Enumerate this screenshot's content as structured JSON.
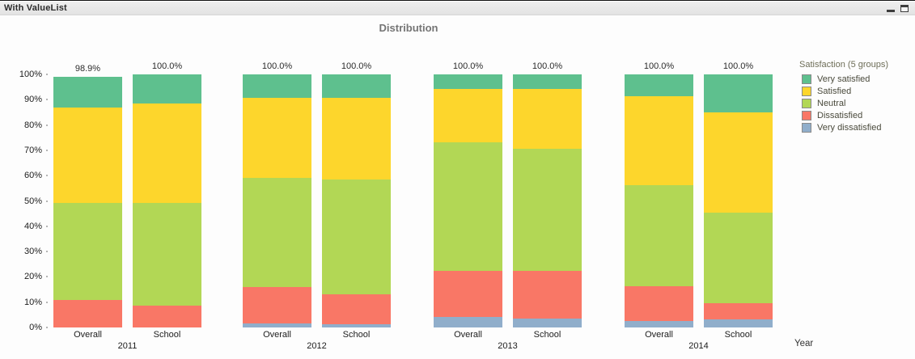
{
  "window": {
    "title": "With ValueList"
  },
  "chart_data": {
    "type": "bar",
    "stacked": true,
    "percent_axis": true,
    "title": "Distribution",
    "xlabel": "Year",
    "ylim": [
      0,
      100
    ],
    "y_ticks": [
      "0%",
      "10%",
      "20%",
      "30%",
      "40%",
      "50%",
      "60%",
      "70%",
      "80%",
      "90%",
      "100%"
    ],
    "legend": {
      "title": "Satisfaction (5 groups)",
      "position": "right",
      "items": [
        {
          "key": "very_satisfied",
          "label": "Very satisfied",
          "color": "#5ec08e"
        },
        {
          "key": "satisfied",
          "label": "Satisfied",
          "color": "#fdd62c"
        },
        {
          "key": "neutral",
          "label": "Neutral",
          "color": "#b2d755"
        },
        {
          "key": "dissatisfied",
          "label": "Dissatisfied",
          "color": "#f97766"
        },
        {
          "key": "very_dissatisfied",
          "label": "Very dissatisfied",
          "color": "#90aecb"
        }
      ]
    },
    "stack_order_bottom_to_top": [
      "very_dissatisfied",
      "dissatisfied",
      "neutral",
      "satisfied",
      "very_satisfied"
    ],
    "groups": [
      {
        "year": "2011",
        "bars": [
          {
            "label": "Overall",
            "total_label": "98.9%",
            "values": {
              "very_dissatisfied": 0.0,
              "dissatisfied": 10.8,
              "neutral": 38.3,
              "satisfied": 37.9,
              "very_satisfied": 11.9
            }
          },
          {
            "label": "School",
            "total_label": "100.0%",
            "values": {
              "very_dissatisfied": 0.0,
              "dissatisfied": 8.6,
              "neutral": 40.5,
              "satisfied": 39.4,
              "very_satisfied": 11.5
            }
          }
        ]
      },
      {
        "year": "2012",
        "bars": [
          {
            "label": "Overall",
            "total_label": "100.0%",
            "values": {
              "very_dissatisfied": 1.5,
              "dissatisfied": 14.6,
              "neutral": 43.0,
              "satisfied": 31.6,
              "very_satisfied": 9.3
            }
          },
          {
            "label": "School",
            "total_label": "100.0%",
            "values": {
              "very_dissatisfied": 1.2,
              "dissatisfied": 11.9,
              "neutral": 45.3,
              "satisfied": 32.3,
              "very_satisfied": 9.3
            }
          }
        ]
      },
      {
        "year": "2013",
        "bars": [
          {
            "label": "Overall",
            "total_label": "100.0%",
            "values": {
              "very_dissatisfied": 4.2,
              "dissatisfied": 18.1,
              "neutral": 50.8,
              "satisfied": 21.2,
              "very_satisfied": 5.7
            }
          },
          {
            "label": "School",
            "total_label": "100.0%",
            "values": {
              "very_dissatisfied": 3.6,
              "dissatisfied": 18.8,
              "neutral": 48.2,
              "satisfied": 23.6,
              "very_satisfied": 5.8
            }
          }
        ]
      },
      {
        "year": "2014",
        "bars": [
          {
            "label": "Overall",
            "total_label": "100.0%",
            "values": {
              "very_dissatisfied": 2.6,
              "dissatisfied": 13.8,
              "neutral": 39.9,
              "satisfied": 35.1,
              "very_satisfied": 8.6
            }
          },
          {
            "label": "School",
            "total_label": "100.0%",
            "values": {
              "very_dissatisfied": 3.1,
              "dissatisfied": 6.4,
              "neutral": 35.8,
              "satisfied": 39.7,
              "very_satisfied": 15.0
            }
          }
        ]
      }
    ]
  }
}
